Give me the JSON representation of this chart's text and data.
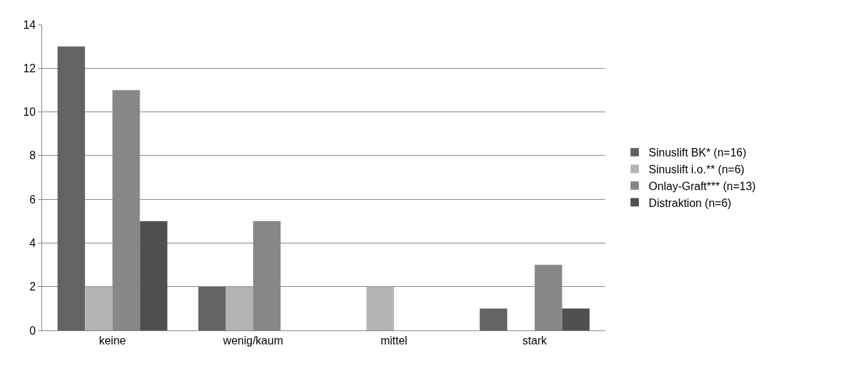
{
  "chart_data": {
    "type": "bar",
    "categories": [
      "keine",
      "wenig/kaum",
      "mittel",
      "stark"
    ],
    "series": [
      {
        "name": "Sinuslift BK* (n=16)",
        "color": "#636363",
        "values": [
          13,
          2,
          0,
          1
        ]
      },
      {
        "name": "Sinuslift i.o.** (n=6)",
        "color": "#b4b4b4",
        "values": [
          2,
          2,
          2,
          0
        ]
      },
      {
        "name": "Onlay-Graft*** (n=13)",
        "color": "#878787",
        "values": [
          11,
          5,
          0,
          3
        ]
      },
      {
        "name": "Distraktion (n=6)",
        "color": "#4f4f4f",
        "values": [
          5,
          0,
          0,
          1
        ]
      }
    ],
    "ylim": [
      0,
      14
    ],
    "yticks": [
      0,
      2,
      4,
      6,
      8,
      10,
      12,
      14
    ],
    "grid": "y",
    "legend": "right"
  }
}
